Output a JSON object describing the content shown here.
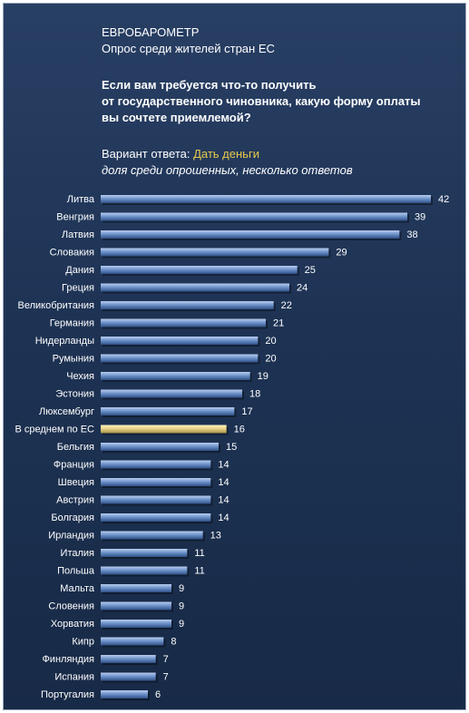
{
  "header": {
    "source": "ЕВРОБАРОМЕТР",
    "survey": "Опрос среди жителей стран ЕС",
    "question_lines": [
      "Если вам требуется  что-то получить",
      "от государственного чиновника, какую форму оплаты",
      "вы сочтете приемлемой?"
    ],
    "variant_prefix": "Вариант ответа: ",
    "variant_value": "Дать деньги",
    "note": "доля среди опрошенных, несколько ответов"
  },
  "colors": {
    "background": "#1e3354",
    "bar": "#6f94cc",
    "highlight_bar": "#e8d488",
    "accent_text": "#e8c84a"
  },
  "chart_data": {
    "type": "bar",
    "orientation": "horizontal",
    "categories": [
      "Литва",
      "Венгрия",
      "Латвия",
      "Словакия",
      "Дания",
      "Греция",
      "Великобритания",
      "Германия",
      "Нидерланды",
      "Румыния",
      "Чехия",
      "Эстония",
      "Люксембург",
      "В среднем  по ЕС",
      "Бельгия",
      "Франция",
      "Швеция",
      "Австрия",
      "Болгария",
      "Ирландия",
      "Италия",
      "Польша",
      "Мальта",
      "Словения",
      "Хорватия",
      "Кипр",
      "Финляндия",
      "Испания",
      "Португалия"
    ],
    "values": [
      42,
      39,
      38,
      29,
      25,
      24,
      22,
      21,
      20,
      20,
      19,
      18,
      17,
      16,
      15,
      14,
      14,
      14,
      14,
      13,
      11,
      11,
      9,
      9,
      9,
      8,
      7,
      7,
      6
    ],
    "highlight": "В среднем  по ЕС",
    "xlim": [
      0,
      42
    ],
    "grid": false,
    "data_labels": true
  }
}
